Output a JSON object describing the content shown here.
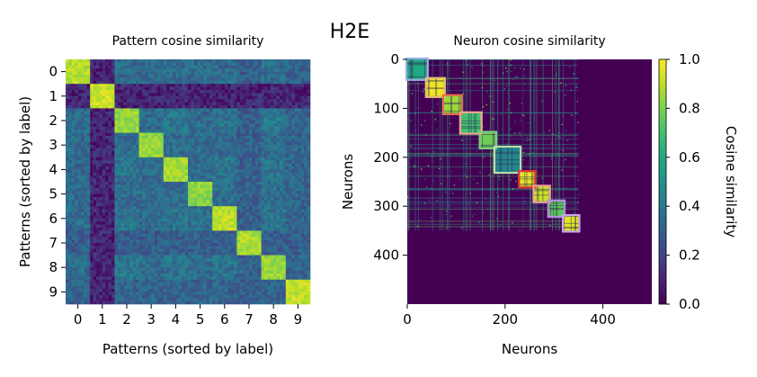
{
  "figure_title": "H2E",
  "chart_data": [
    {
      "type": "heatmap",
      "title": "Pattern cosine similarity",
      "xlabel": "Patterns (sorted by label)",
      "ylabel": "Patterns (sorted by label)",
      "categories": [
        "0",
        "1",
        "2",
        "3",
        "4",
        "5",
        "6",
        "7",
        "8",
        "9"
      ],
      "block_values": [
        0.95,
        0.98,
        0.9,
        0.9,
        0.92,
        0.88,
        0.96,
        0.93,
        0.9,
        0.97
      ],
      "background_values": [
        0.35,
        0.1,
        0.4,
        0.35,
        0.38,
        0.35,
        0.38,
        0.3,
        0.4,
        0.32
      ],
      "block_sizes": [
        1,
        1,
        1,
        1,
        1,
        1,
        1,
        1,
        1,
        1
      ]
    },
    {
      "type": "heatmap",
      "title": "Neuron cosine similarity",
      "xlabel": "Neurons",
      "ylabel": "Neurons",
      "x_ticks": [
        0,
        200,
        400
      ],
      "y_ticks": [
        0,
        100,
        200,
        300,
        400
      ],
      "n_neurons": 500,
      "active_neurons": 350,
      "clusters": [
        {
          "start": 0,
          "end": 40,
          "outline_color": "#9ab0e8"
        },
        {
          "start": 40,
          "end": 75,
          "outline_color": "#e8c27a"
        },
        {
          "start": 75,
          "end": 110,
          "outline_color": "#e8734a"
        },
        {
          "start": 110,
          "end": 150,
          "outline_color": "#f0a890"
        },
        {
          "start": 150,
          "end": 180,
          "outline_color": "#7dcf7d"
        },
        {
          "start": 180,
          "end": 230,
          "outline_color": "#b8e0a8"
        },
        {
          "start": 230,
          "end": 260,
          "outline_color": "#e03030"
        },
        {
          "start": 260,
          "end": 290,
          "outline_color": "#f0a0a0"
        },
        {
          "start": 290,
          "end": 320,
          "outline_color": "#b090d8"
        },
        {
          "start": 320,
          "end": 350,
          "outline_color": "#c8a8e8"
        }
      ],
      "colorbar": {
        "label": "Cosine similarity",
        "ticks": [
          "0.0",
          "0.2",
          "0.4",
          "0.6",
          "0.8",
          "1.0"
        ],
        "range": [
          0,
          1
        ]
      }
    }
  ]
}
